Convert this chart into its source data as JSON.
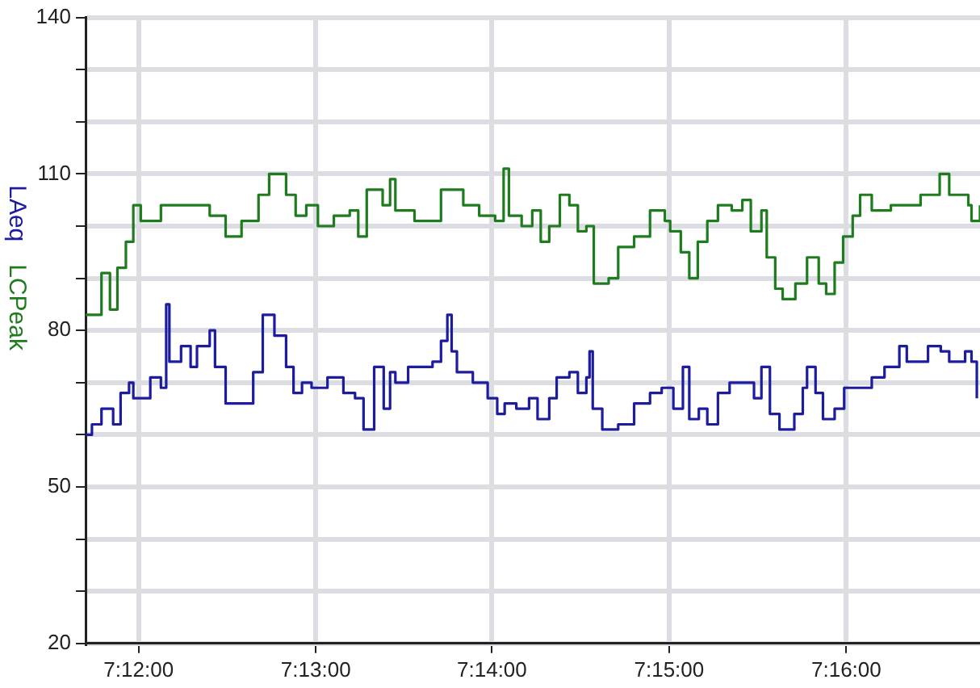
{
  "chart_data": {
    "type": "step",
    "xlim": [
      7.195,
      7.2793
    ],
    "xticks": [
      {
        "value": 7.2,
        "label": "7:12:00"
      },
      {
        "value": 7.2167,
        "label": "7:13:00"
      },
      {
        "value": 7.2333,
        "label": "7:14:00"
      },
      {
        "value": 7.25,
        "label": "7:15:00"
      },
      {
        "value": 7.2667,
        "label": "7:16:00"
      }
    ],
    "ylim": [
      20,
      140
    ],
    "yticks": [
      20,
      {
        "value": 30,
        "label": null
      },
      {
        "value": 40,
        "label": null
      },
      50,
      {
        "value": 60,
        "label": null
      },
      {
        "value": 70,
        "label": null
      },
      80,
      {
        "value": 90,
        "label": null
      },
      {
        "value": 100,
        "label": null
      },
      110,
      {
        "value": 120,
        "label": null
      },
      {
        "value": 130,
        "label": null
      },
      140
    ],
    "grid": true,
    "legend": false,
    "marker": "none",
    "line_style": "solid",
    "series": [
      {
        "name": "LAeq",
        "color": "#1c1c9c",
        "x": [
          7.195,
          7.1956,
          7.1965,
          7.1976,
          7.1983,
          7.1991,
          7.1995,
          7.2011,
          7.2021,
          7.2026,
          7.2029,
          7.204,
          7.2049,
          7.2055,
          7.2067,
          7.2072,
          7.2082,
          7.2097,
          7.2108,
          7.2117,
          7.2128,
          7.2139,
          7.2146,
          7.2154,
          7.2163,
          7.2178,
          7.2193,
          7.2204,
          7.2212,
          7.2222,
          7.2231,
          7.2237,
          7.2242,
          7.2254,
          7.2277,
          7.2285,
          7.2291,
          7.2295,
          7.23,
          7.2315,
          7.2329,
          7.2338,
          7.2345,
          7.2356,
          7.2368,
          7.2376,
          7.2387,
          7.2394,
          7.2406,
          7.2414,
          7.2422,
          7.2425,
          7.2428,
          7.2437,
          7.2452,
          7.2467,
          7.2482,
          7.2493,
          7.2504,
          7.2513,
          7.2519,
          7.2528,
          7.2536,
          7.2546,
          7.2557,
          7.2572,
          7.258,
          7.2587,
          7.2595,
          7.2604,
          7.2618,
          7.2626,
          7.263,
          7.2638,
          7.2645,
          7.2656,
          7.2665,
          7.2679,
          7.2691,
          7.2703,
          7.2717,
          7.2724,
          7.274,
          7.2744,
          7.2756,
          7.2764,
          7.2779,
          7.2785,
          7.279
        ],
        "values": [
          60,
          62,
          65,
          62,
          68,
          70,
          67,
          71,
          69,
          85,
          74,
          77,
          73,
          77,
          80,
          73,
          66,
          66,
          72,
          83,
          79,
          73,
          68,
          70,
          69,
          71,
          68,
          67,
          61,
          73,
          65,
          72,
          70,
          73,
          74,
          78,
          83,
          76,
          72,
          70,
          67,
          64,
          66,
          65,
          67,
          63,
          67,
          71,
          72,
          68,
          71,
          76,
          65,
          61,
          62,
          66,
          68,
          69,
          65,
          73,
          63,
          65,
          62,
          68,
          70,
          70,
          67,
          73,
          64,
          61,
          64,
          69,
          73,
          68,
          63,
          65,
          69,
          69,
          71,
          73,
          77,
          74,
          74,
          77,
          76,
          74,
          76,
          74,
          67
        ]
      },
      {
        "name": "LCPeak",
        "color": "#1e7b1e",
        "x": [
          7.195,
          7.1965,
          7.1973,
          7.198,
          7.1988,
          7.1995,
          7.2002,
          7.2021,
          7.2047,
          7.2067,
          7.2082,
          7.2097,
          7.2113,
          7.2123,
          7.2139,
          7.2148,
          7.2158,
          7.2169,
          7.2184,
          7.2199,
          7.2207,
          7.2215,
          7.223,
          7.2237,
          7.2242,
          7.226,
          7.2285,
          7.2306,
          7.2321,
          7.2336,
          7.2344,
          7.2349,
          7.2361,
          7.2371,
          7.2379,
          7.2387,
          7.2397,
          7.2406,
          7.2414,
          7.2422,
          7.2429,
          7.2443,
          7.2452,
          7.2467,
          7.2482,
          7.2496,
          7.2501,
          7.2511,
          7.2519,
          7.2527,
          7.2536,
          7.2546,
          7.2559,
          7.2569,
          7.2577,
          7.2587,
          7.2592,
          7.26,
          7.2607,
          7.2619,
          7.263,
          7.2641,
          7.2648,
          7.2656,
          7.2664,
          7.2673,
          7.268,
          7.2691,
          7.2709,
          7.2724,
          7.2737,
          7.2755,
          7.2764,
          7.2782,
          7.2785,
          7.2793
        ],
        "values": [
          83,
          91,
          84,
          92,
          97,
          104,
          101,
          104,
          104,
          102,
          98,
          101,
          106,
          110,
          106,
          102,
          104,
          100,
          102,
          103,
          98,
          107,
          104,
          109,
          103,
          101,
          107,
          104,
          102,
          101,
          111,
          102,
          100,
          103,
          97,
          100,
          106,
          104,
          99,
          100,
          89,
          90,
          96,
          98,
          103,
          101,
          99,
          95,
          90,
          97,
          101,
          104,
          103,
          105,
          99,
          103,
          94,
          88,
          86,
          89,
          94,
          89,
          87,
          93,
          98,
          102,
          106,
          103,
          104,
          104,
          106,
          110,
          106,
          104,
          101,
          104
        ]
      }
    ]
  }
}
